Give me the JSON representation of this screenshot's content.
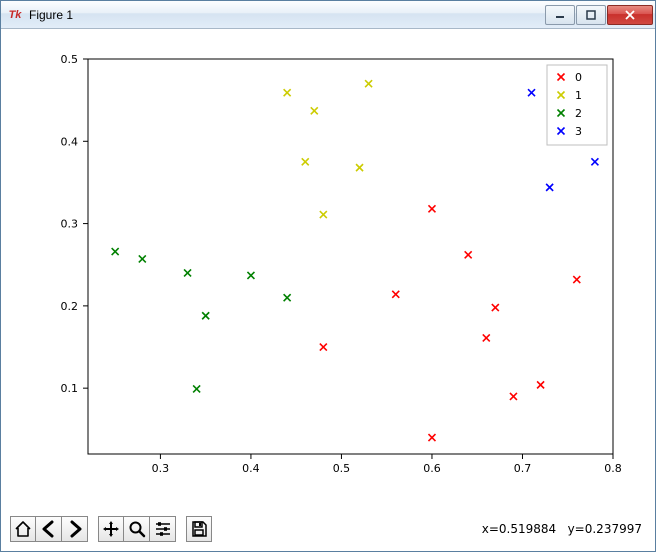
{
  "window": {
    "title": "Figure 1",
    "app_icon_label": "Tk"
  },
  "toolbar": {
    "home": "home-icon",
    "back": "back-icon",
    "forward": "forward-icon",
    "pan": "pan-icon",
    "zoom": "zoom-icon",
    "configure": "configure-icon",
    "save": "save-icon"
  },
  "status": {
    "coord_text": "x=0.519884   y=0.237997"
  },
  "chart": {
    "type": "scatter",
    "background_color": "#ffffff",
    "axes_border_color": "#000000",
    "tick_font_size": 11,
    "legend_font_size": 11,
    "marker": "x",
    "marker_size": 7,
    "marker_stroke": 1.6,
    "x_axis": {
      "lim": [
        0.22,
        0.8
      ],
      "ticks": [
        0.3,
        0.4,
        0.5,
        0.6,
        0.7,
        0.8
      ],
      "tick_labels": [
        "0.3",
        "0.4",
        "0.5",
        "0.6",
        "0.7",
        "0.8"
      ]
    },
    "y_axis": {
      "lim": [
        0.02,
        0.5
      ],
      "ticks": [
        0.1,
        0.2,
        0.3,
        0.4,
        0.5
      ],
      "tick_labels": [
        "0.1",
        "0.2",
        "0.3",
        "0.4",
        "0.5"
      ]
    },
    "legend": {
      "position": "upper right",
      "border_color": "#bfbfbf",
      "background_color": "#ffffff",
      "items": [
        {
          "label": "0",
          "color": "#ff0000"
        },
        {
          "label": "1",
          "color": "#cccc00"
        },
        {
          "label": "2",
          "color": "#008000"
        },
        {
          "label": "3",
          "color": "#0000ff"
        }
      ]
    },
    "series": [
      {
        "name": "0",
        "color": "#ff0000",
        "points": [
          [
            0.6,
            0.04
          ],
          [
            0.69,
            0.09
          ],
          [
            0.72,
            0.104
          ],
          [
            0.48,
            0.15
          ],
          [
            0.66,
            0.161
          ],
          [
            0.67,
            0.198
          ],
          [
            0.56,
            0.214
          ],
          [
            0.76,
            0.232
          ],
          [
            0.64,
            0.262
          ],
          [
            0.6,
            0.318
          ]
        ]
      },
      {
        "name": "1",
        "color": "#cccc00",
        "points": [
          [
            0.48,
            0.311
          ],
          [
            0.52,
            0.368
          ],
          [
            0.46,
            0.375
          ],
          [
            0.47,
            0.437
          ],
          [
            0.44,
            0.459
          ],
          [
            0.53,
            0.47
          ]
        ]
      },
      {
        "name": "2",
        "color": "#008000",
        "points": [
          [
            0.34,
            0.099
          ],
          [
            0.35,
            0.188
          ],
          [
            0.44,
            0.21
          ],
          [
            0.4,
            0.237
          ],
          [
            0.33,
            0.24
          ],
          [
            0.28,
            0.257
          ],
          [
            0.25,
            0.266
          ]
        ]
      },
      {
        "name": "3",
        "color": "#0000ff",
        "points": [
          [
            0.73,
            0.344
          ],
          [
            0.78,
            0.375
          ],
          [
            0.74,
            0.444
          ],
          [
            0.71,
            0.459
          ]
        ]
      }
    ]
  }
}
